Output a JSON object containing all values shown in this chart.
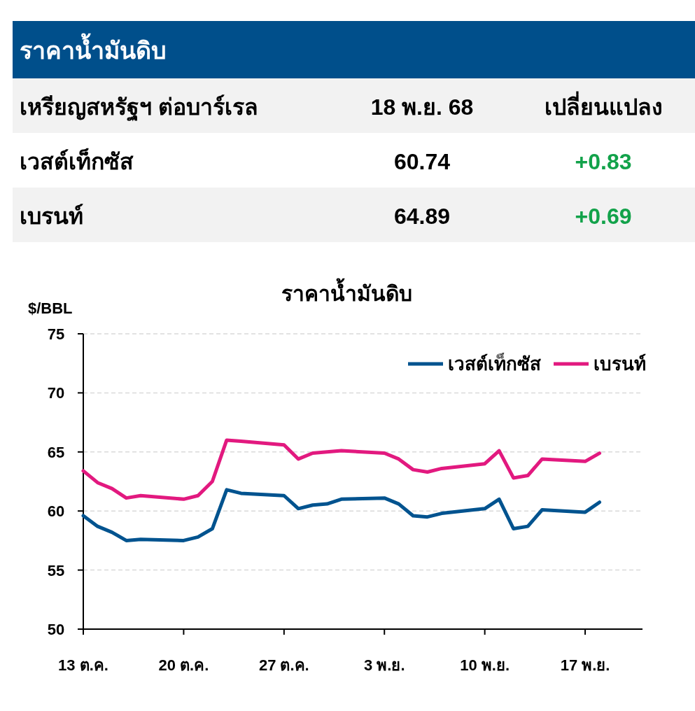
{
  "chart_data": [
    {
      "type": "other",
      "title": "ราคาน้ำมันดิบ",
      "annotations": [
        "เหรียญสหรัฐฯ ต่อบาร์เรล",
        "18 พ.ย. 68",
        "เปลี่ยนแปลง",
        "เวสต์เท็กซัส",
        "60.74",
        "+0.83",
        "เบรนท์",
        "64.89",
        "+0.69"
      ]
    },
    {
      "type": "line",
      "title": "ราคาน้ำมันดิบ",
      "ylabel": "$/BBL",
      "x": [
        "--10-13",
        "--10-14",
        "--10-15",
        "--10-16",
        "--10-17",
        "--10-20",
        "--10-21",
        "--10-22",
        "--10-23",
        "--10-24",
        "--10-27",
        "--10-28",
        "--10-29",
        "--10-30",
        "--10-31",
        "--11-03",
        "--11-04",
        "--11-05",
        "--11-06",
        "--11-07",
        "--11-10",
        "--11-11",
        "--11-12",
        "--11-13",
        "--11-14",
        "--11-17",
        "--11-18"
      ],
      "series": [
        {
          "name": "เวสต์เท็กซัส",
          "color": "#00538f",
          "values": [
            59.6,
            58.7,
            58.2,
            57.5,
            57.6,
            57.5,
            57.8,
            58.5,
            61.8,
            61.5,
            61.3,
            60.2,
            60.5,
            60.6,
            61.0,
            61.1,
            60.6,
            59.6,
            59.5,
            59.8,
            60.2,
            61.0,
            58.5,
            58.7,
            60.1,
            59.9,
            60.74
          ]
        },
        {
          "name": "เบรนท์",
          "color": "#e2197f",
          "values": [
            63.4,
            62.4,
            61.9,
            61.1,
            61.3,
            61.0,
            61.3,
            62.5,
            66.0,
            65.9,
            65.6,
            64.4,
            64.9,
            65.0,
            65.1,
            64.9,
            64.4,
            63.5,
            63.3,
            63.6,
            64.0,
            65.1,
            62.8,
            63.0,
            64.4,
            64.2,
            64.89
          ]
        }
      ],
      "xlim": [
        "--10-13",
        "--11-21"
      ],
      "xticks": [
        {
          "value": "--10-13",
          "label": "13 ต.ค."
        },
        {
          "value": "--10-20",
          "label": "20 ต.ค."
        },
        {
          "value": "--10-27",
          "label": "27 ต.ค."
        },
        {
          "value": "--11-03",
          "label": "3 พ.ย."
        },
        {
          "value": "--11-10",
          "label": "10 พ.ย."
        },
        {
          "value": "--11-17",
          "label": "17 พ.ย."
        }
      ],
      "ylim": [
        50,
        75
      ],
      "yticks": [
        50,
        55,
        60,
        65,
        70,
        75
      ],
      "grid": "y",
      "legend": "top right",
      "marker": "none",
      "line_style": "solid"
    }
  ]
}
